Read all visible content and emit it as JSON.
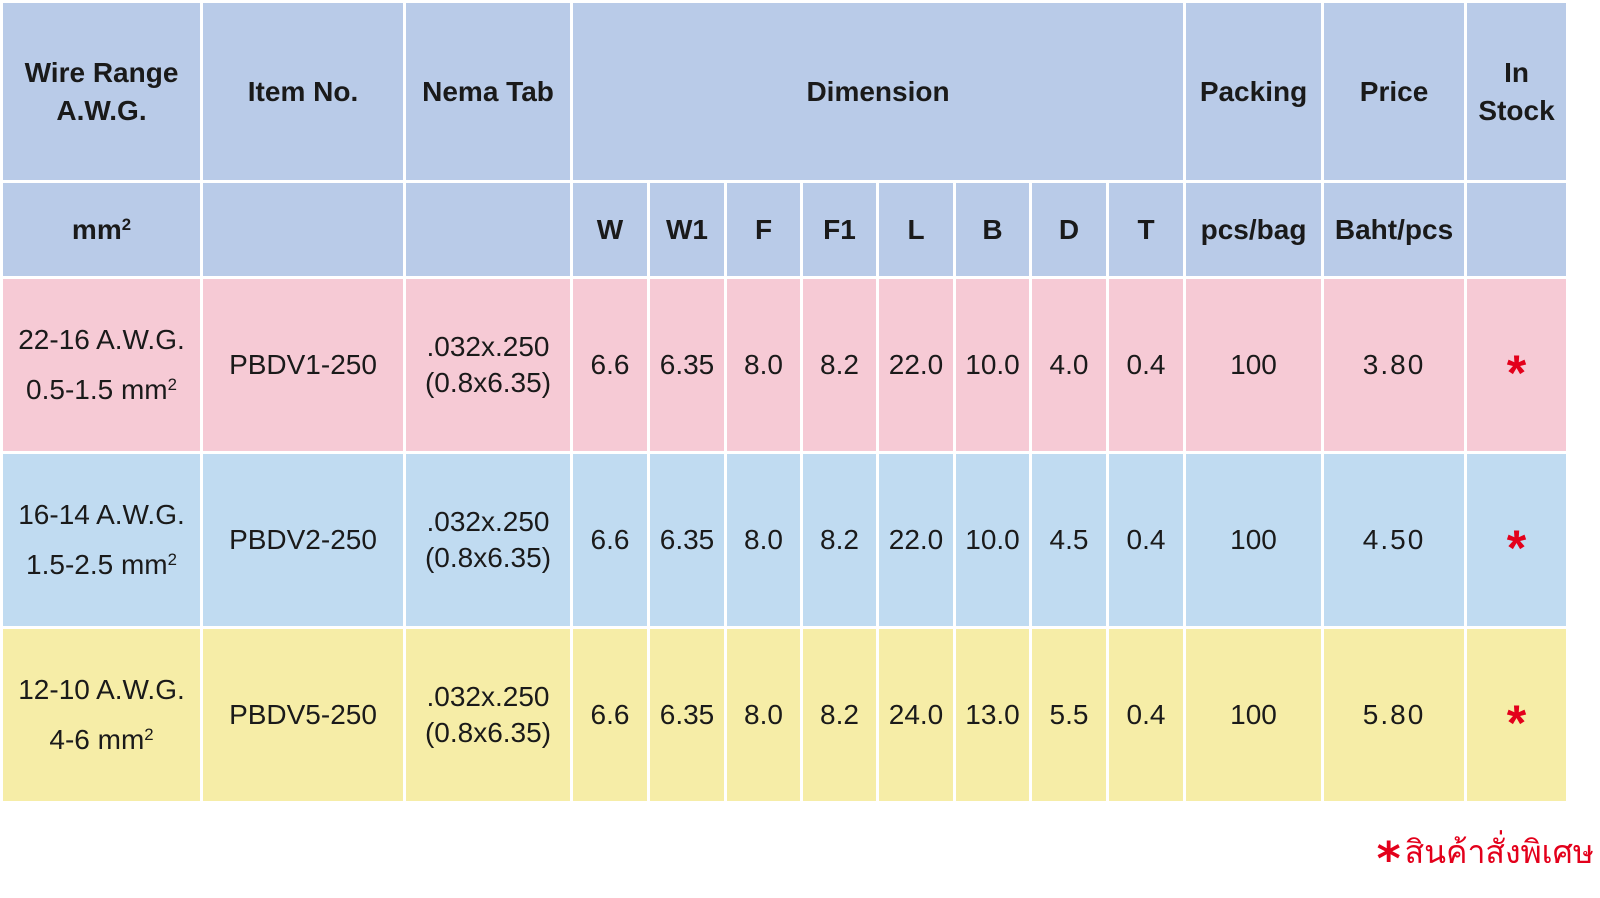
{
  "header": {
    "wire_range": [
      "Wire Range",
      "A.W.G."
    ],
    "item_no": "Item No.",
    "nema_tab": "Nema Tab",
    "dimension": "Dimension",
    "packing": "Packing",
    "price": "Price",
    "in_stock": [
      "In",
      "Stock"
    ]
  },
  "subheader": {
    "wire_unit": "mm",
    "wire_unit_sup": "2",
    "dims": [
      "W",
      "W1",
      "F",
      "F1",
      "L",
      "B",
      "D",
      "T"
    ],
    "packing_unit": "pcs/bag",
    "price_unit": "Baht/pcs"
  },
  "rows": [
    {
      "awg": "22-16 A.W.G.",
      "mm": "0.5-1.5 mm",
      "mm_sup": "2",
      "item_no": "PBDV1-250",
      "nema": [
        ".032x.250",
        "(0.8x6.35)"
      ],
      "dims": [
        "6.6",
        "6.35",
        "8.0",
        "8.2",
        "22.0",
        "10.0",
        "4.0",
        "0.4"
      ],
      "packing": "100",
      "price": "3.80",
      "in_stock": "*"
    },
    {
      "awg": "16-14 A.W.G.",
      "mm": "1.5-2.5 mm",
      "mm_sup": "2",
      "item_no": "PBDV2-250",
      "nema": [
        ".032x.250",
        "(0.8x6.35)"
      ],
      "dims": [
        "6.6",
        "6.35",
        "8.0",
        "8.2",
        "22.0",
        "10.0",
        "4.5",
        "0.4"
      ],
      "packing": "100",
      "price": "4.50",
      "in_stock": "*"
    },
    {
      "awg": "12-10 A.W.G.",
      "mm": "4-6 mm",
      "mm_sup": "2",
      "item_no": "PBDV5-250",
      "nema": [
        ".032x.250",
        "(0.8x6.35)"
      ],
      "dims": [
        "6.6",
        "6.35",
        "8.0",
        "8.2",
        "24.0",
        "13.0",
        "5.5",
        "0.4"
      ],
      "packing": "100",
      "price": "5.80",
      "in_stock": "*"
    }
  ],
  "footnote": {
    "star": "*",
    "text": "สินค้าสั่งพิเศษ"
  },
  "colors": {
    "header_bg": "#b9cbe8",
    "row1_bg": "#f6cad5",
    "row2_bg": "#c0dbf1",
    "row3_bg": "#f6eda7",
    "accent_red": "#e3001b"
  }
}
